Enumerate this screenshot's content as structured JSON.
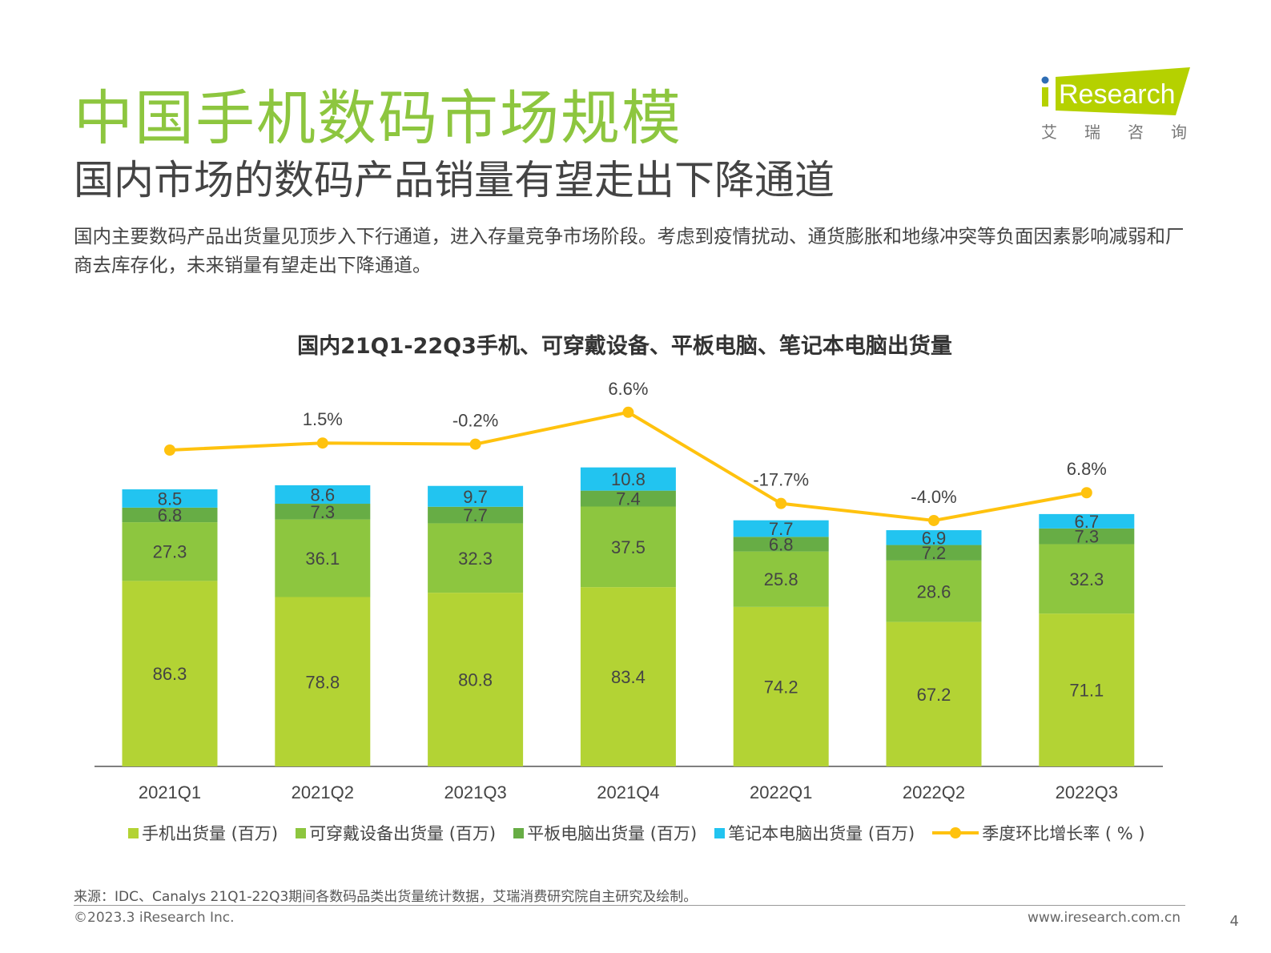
{
  "header": {
    "title": "中国手机数码市场规模",
    "subtitle": "国内市场的数码产品销量有望走出下降通道",
    "description": "国内主要数码产品出货量见顶步入下行通道，进入存量竞争市场阶段。考虑到疫情扰动、通货膨胀和地缘冲突等负面因素影响减弱和厂商去库存化，未来销量有望走出下降通道。"
  },
  "logo": {
    "text": "iResearch",
    "cn": "艾 瑞 咨 询",
    "color": "#b5d100",
    "dot_color": "#2e6db4"
  },
  "chart_data": {
    "type": "bar",
    "stacked": true,
    "title": "国内21Q1-22Q3手机、可穿戴设备、平板电脑、笔记本电脑出货量",
    "categories": [
      "2021Q1",
      "2021Q2",
      "2021Q3",
      "2021Q4",
      "2022Q1",
      "2022Q2",
      "2022Q3"
    ],
    "series": [
      {
        "name": "手机出货量 (百万)",
        "color": "#b3d334",
        "values": [
          86.3,
          78.8,
          80.8,
          83.4,
          74.2,
          67.2,
          71.1
        ]
      },
      {
        "name": "可穿戴设备出货量 (百万)",
        "color": "#8dc63f",
        "values": [
          27.3,
          36.1,
          32.3,
          37.5,
          25.8,
          28.6,
          32.3
        ]
      },
      {
        "name": "平板电脑出货量 (百万)",
        "color": "#67ad45",
        "values": [
          6.8,
          7.3,
          7.7,
          7.4,
          6.8,
          7.2,
          7.3
        ]
      },
      {
        "name": "笔记本电脑出货量 (百万)",
        "color": "#22c4f0",
        "values": [
          8.5,
          8.6,
          9.7,
          10.8,
          7.7,
          6.9,
          6.7
        ]
      }
    ],
    "line": {
      "name": "季度环比增长率 ( % )",
      "color": "#ffc20e",
      "values": [
        null,
        1.5,
        -0.2,
        6.6,
        -17.7,
        -4.0,
        6.8
      ],
      "labels": [
        "",
        "1.5%",
        "-0.2%",
        "6.6%",
        "-17.7%",
        "-4.0%",
        "6.8%"
      ]
    },
    "legend": "bottom",
    "grid": false
  },
  "footer": {
    "source": "来源：IDC、Canalys 21Q1-22Q3期间各数码品类出货量统计数据，艾瑞消费研究院自主研究及绘制。",
    "copyright": "©2023.3 iResearch Inc.",
    "url": "www.iresearch.com.cn",
    "page": "4"
  }
}
